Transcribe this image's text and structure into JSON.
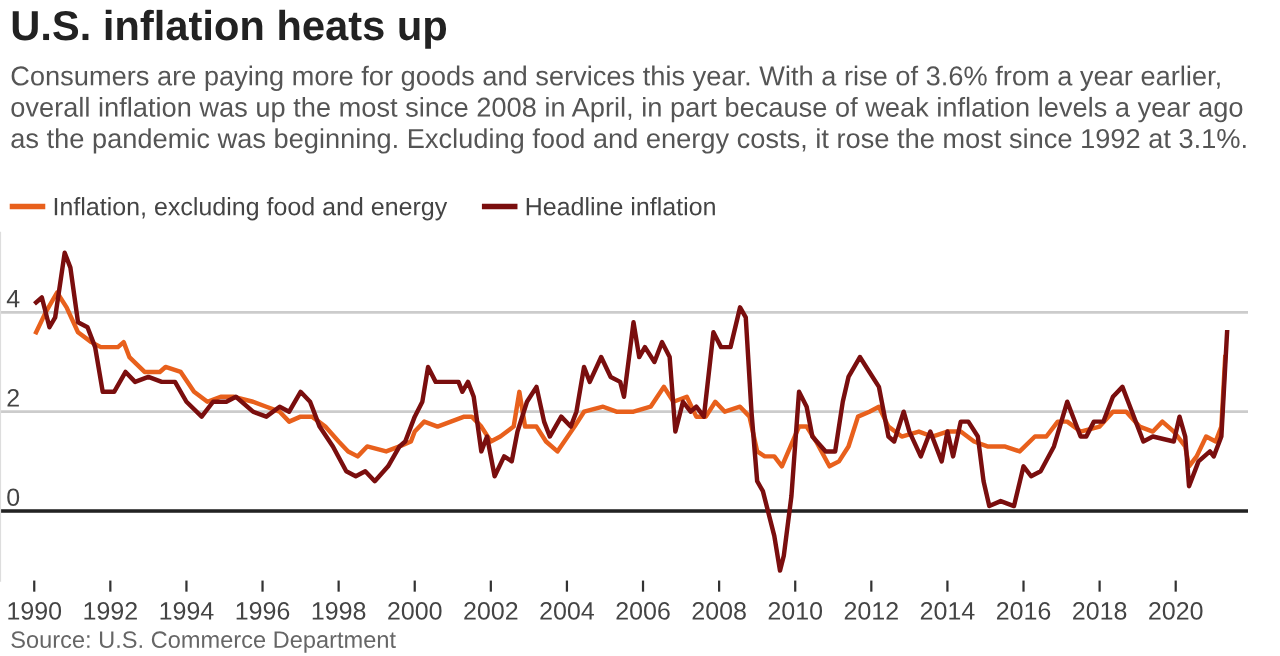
{
  "chart_data": {
    "type": "line",
    "title": "U.S. inflation heats up",
    "subtitle": "Consumers are paying more for goods and services this year. With a rise of 3.6% from a year earlier, overall inflation was up the most since 2008 in April, in part because of weak inflation levels a year ago as the pandemic was beginning. Excluding food and energy costs, it rose the most since 1992 at 3.1%.",
    "annotations": [
      "Source: U.S. Commerce Department"
    ],
    "series": [
      {
        "name": "Inflation, excluding food and energy",
        "color": "#e8601c",
        "x": [
          1990.05,
          1990.3,
          1990.6,
          1990.85,
          1991.15,
          1991.5,
          1991.75,
          1992.2,
          1992.35,
          1992.5,
          1992.9,
          1993.3,
          1993.45,
          1993.85,
          1994.2,
          1994.55,
          1994.9,
          1995.25,
          1995.75,
          1996.1,
          1996.45,
          1996.7,
          1997.0,
          1997.3,
          1997.65,
          1998.0,
          1998.25,
          1998.5,
          1998.75,
          1999.25,
          1999.6,
          1999.9,
          2000.0,
          2000.25,
          2000.6,
          2000.95,
          2001.3,
          2001.5,
          2001.75,
          2002.0,
          2002.25,
          2002.6,
          2002.75,
          2002.9,
          2003.2,
          2003.45,
          2003.75,
          2004.2,
          2004.45,
          2004.95,
          2005.3,
          2005.75,
          2006.2,
          2006.55,
          2006.8,
          2007.15,
          2007.4,
          2007.65,
          2007.9,
          2008.15,
          2008.55,
          2008.8,
          2009.0,
          2009.2,
          2009.45,
          2009.65,
          2010.1,
          2010.3,
          2010.55,
          2010.9,
          2011.15,
          2011.4,
          2011.65,
          2011.95,
          2012.2,
          2012.45,
          2012.8,
          2013.25,
          2013.6,
          2014.0,
          2014.35,
          2014.7,
          2015.05,
          2015.5,
          2015.9,
          2016.3,
          2016.6,
          2016.9,
          2017.15,
          2017.5,
          2018.0,
          2018.35,
          2018.7,
          2019.05,
          2019.4,
          2019.65,
          2019.95,
          2020.25,
          2020.35,
          2020.55,
          2020.8,
          2021.05,
          2021.2,
          2021.3
        ],
        "values": [
          3.6,
          4.0,
          4.4,
          4.1,
          3.6,
          3.4,
          3.3,
          3.3,
          3.4,
          3.1,
          2.8,
          2.8,
          2.9,
          2.8,
          2.4,
          2.2,
          2.3,
          2.3,
          2.2,
          2.1,
          2.0,
          1.8,
          1.9,
          1.9,
          1.7,
          1.4,
          1.2,
          1.1,
          1.3,
          1.2,
          1.3,
          1.4,
          1.6,
          1.8,
          1.7,
          1.8,
          1.9,
          1.9,
          1.7,
          1.4,
          1.5,
          1.7,
          2.4,
          1.7,
          1.7,
          1.4,
          1.2,
          1.7,
          2.0,
          2.1,
          2.0,
          2.0,
          2.1,
          2.5,
          2.2,
          2.3,
          1.9,
          1.9,
          2.2,
          2.0,
          2.1,
          1.9,
          1.2,
          1.1,
          1.1,
          0.9,
          1.7,
          1.7,
          1.4,
          0.9,
          1.0,
          1.3,
          1.9,
          2.0,
          2.1,
          1.7,
          1.5,
          1.6,
          1.5,
          1.6,
          1.6,
          1.4,
          1.3,
          1.3,
          1.2,
          1.5,
          1.5,
          1.8,
          1.8,
          1.6,
          1.7,
          2.0,
          2.0,
          1.7,
          1.6,
          1.8,
          1.6,
          1.3,
          0.9,
          1.1,
          1.5,
          1.4,
          1.7,
          3.1
        ]
      },
      {
        "name": "Headline inflation",
        "color": "#7a0e0e",
        "x": [
          1990.05,
          1990.2,
          1990.4,
          1990.55,
          1990.8,
          1990.95,
          1991.15,
          1991.4,
          1991.6,
          1991.8,
          1992.1,
          1992.4,
          1992.65,
          1993.0,
          1993.35,
          1993.7,
          1994.0,
          1994.4,
          1994.7,
          1995.05,
          1995.3,
          1995.75,
          1996.1,
          1996.45,
          1996.7,
          1997.0,
          1997.25,
          1997.5,
          1997.85,
          1998.2,
          1998.45,
          1998.7,
          1998.95,
          1999.3,
          1999.6,
          1999.75,
          2000.0,
          2000.2,
          2000.35,
          2000.55,
          2000.8,
          2001.15,
          2001.25,
          2001.4,
          2001.55,
          2001.75,
          2001.9,
          2002.1,
          2002.35,
          2002.55,
          2002.7,
          2002.95,
          2003.2,
          2003.4,
          2003.55,
          2003.85,
          2004.1,
          2004.25,
          2004.45,
          2004.6,
          2004.9,
          2005.15,
          2005.4,
          2005.5,
          2005.75,
          2005.9,
          2006.05,
          2006.3,
          2006.5,
          2006.7,
          2006.85,
          2007.05,
          2007.25,
          2007.4,
          2007.6,
          2007.85,
          2008.05,
          2008.3,
          2008.55,
          2008.7,
          2008.85,
          2009.0,
          2009.15,
          2009.45,
          2009.6,
          2009.7,
          2009.9,
          2010.1,
          2010.3,
          2010.45,
          2010.8,
          2011.05,
          2011.25,
          2011.4,
          2011.7,
          2011.95,
          2012.2,
          2012.45,
          2012.6,
          2012.85,
          2013.0,
          2013.3,
          2013.55,
          2013.85,
          2014.0,
          2014.15,
          2014.35,
          2014.55,
          2014.8,
          2014.95,
          2015.1,
          2015.4,
          2015.75,
          2016.0,
          2016.2,
          2016.45,
          2016.8,
          2017.15,
          2017.5,
          2017.65,
          2017.85,
          2018.1,
          2018.35,
          2018.6,
          2018.8,
          2019.15,
          2019.4,
          2019.95,
          2020.1,
          2020.25,
          2020.35,
          2020.6,
          2020.9,
          2021.0,
          2021.2,
          2021.35
        ],
        "values": [
          4.2,
          4.3,
          3.7,
          3.9,
          5.2,
          4.9,
          3.8,
          3.7,
          3.3,
          2.4,
          2.4,
          2.8,
          2.6,
          2.7,
          2.6,
          2.6,
          2.2,
          1.9,
          2.2,
          2.2,
          2.3,
          2.0,
          1.9,
          2.1,
          2.0,
          2.4,
          2.2,
          1.7,
          1.3,
          0.8,
          0.7,
          0.8,
          0.6,
          0.9,
          1.3,
          1.4,
          1.9,
          2.2,
          2.9,
          2.6,
          2.6,
          2.6,
          2.4,
          2.6,
          2.3,
          1.2,
          1.5,
          0.7,
          1.1,
          1.0,
          1.6,
          2.2,
          2.5,
          1.8,
          1.5,
          1.9,
          1.7,
          2.0,
          2.9,
          2.6,
          3.1,
          2.7,
          2.6,
          2.3,
          3.8,
          3.1,
          3.3,
          3.0,
          3.4,
          3.1,
          1.6,
          2.2,
          2.0,
          2.1,
          1.9,
          3.6,
          3.3,
          3.3,
          4.1,
          3.9,
          2.0,
          0.6,
          0.4,
          -0.5,
          -1.2,
          -0.9,
          0.3,
          2.4,
          2.1,
          1.5,
          1.2,
          1.2,
          2.2,
          2.7,
          3.1,
          2.8,
          2.5,
          1.5,
          1.4,
          2.0,
          1.6,
          1.1,
          1.6,
          1.0,
          1.6,
          1.1,
          1.8,
          1.8,
          1.5,
          0.6,
          0.1,
          0.2,
          0.1,
          0.9,
          0.7,
          0.8,
          1.3,
          2.2,
          1.5,
          1.5,
          1.8,
          1.8,
          2.3,
          2.5,
          2.1,
          1.4,
          1.5,
          1.4,
          1.9,
          1.5,
          0.5,
          1.0,
          1.2,
          1.1,
          1.5,
          3.6
        ]
      }
    ],
    "xlim": [
      1989.1,
      2021.9
    ],
    "xticks": [
      1990,
      1992,
      1994,
      1996,
      1998,
      2000,
      2002,
      2004,
      2006,
      2008,
      2010,
      2012,
      2014,
      2016,
      2018,
      2020
    ],
    "ylim": [
      -1.4,
      5.6
    ],
    "yticks": [
      0,
      2,
      4
    ],
    "grid": "y",
    "legend": "top left",
    "line_style": "solid",
    "marker": "none",
    "ref_lines": [
      {
        "axis": "y",
        "value": 0,
        "color": "#222222"
      }
    ]
  }
}
